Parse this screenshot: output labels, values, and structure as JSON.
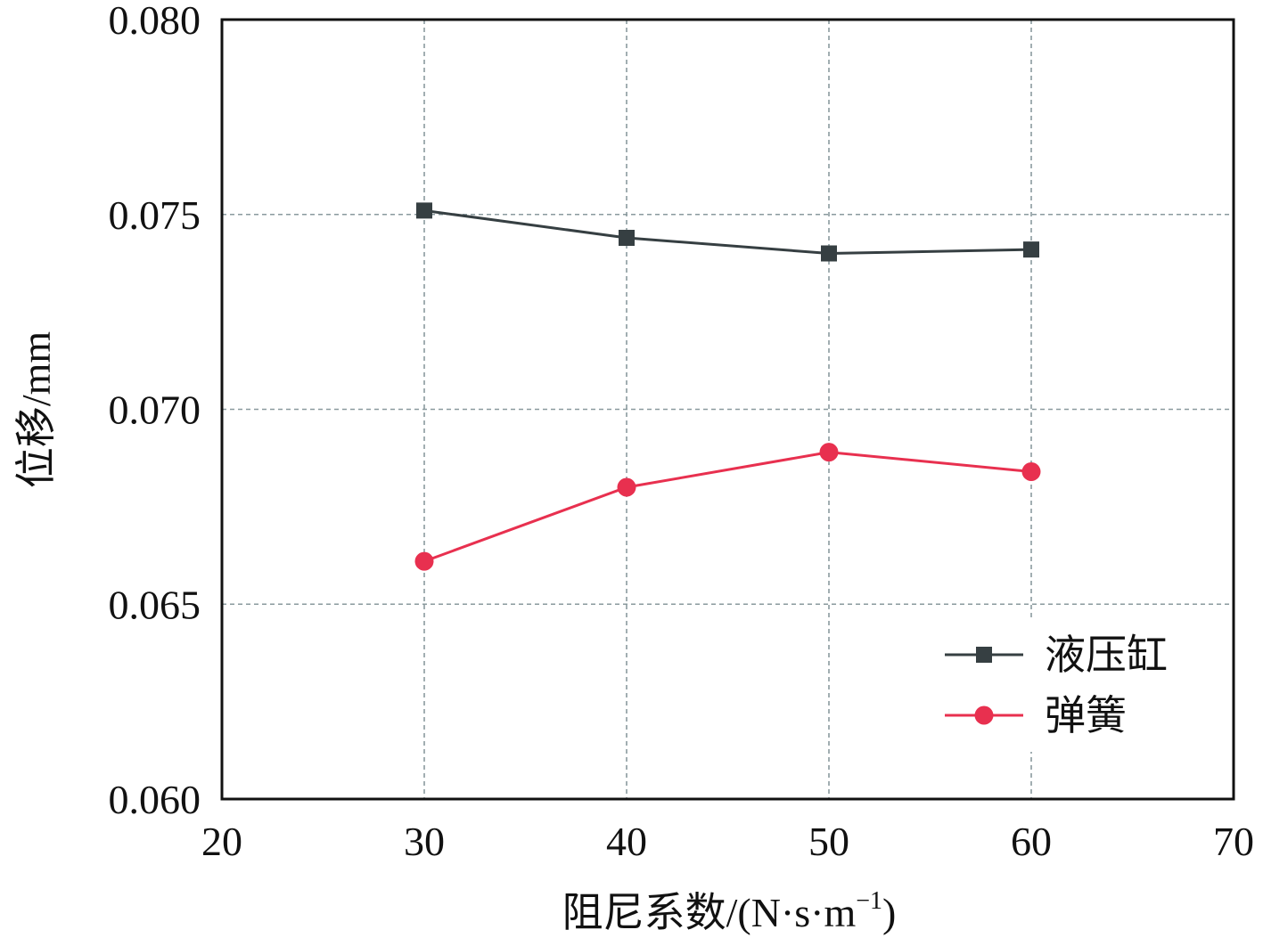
{
  "chart_data": {
    "type": "line",
    "title": "",
    "xlabel": "阻尼系数/(N·s·m",
    "xlabel_sup": "−1",
    "xlabel_close": ")",
    "ylabel": "位移/mm",
    "xlim": [
      20,
      70
    ],
    "ylim": [
      0.06,
      0.08
    ],
    "xticks": [
      20,
      30,
      40,
      50,
      60,
      70
    ],
    "xtick_labels": [
      "20",
      "30",
      "40",
      "50",
      "60",
      "70"
    ],
    "yticks": [
      0.06,
      0.065,
      0.07,
      0.075,
      0.08
    ],
    "ytick_labels": [
      "0.060",
      "0.065",
      "0.070",
      "0.075",
      "0.080"
    ],
    "grid": true,
    "legend_position": "bottom-right",
    "x": [
      30,
      40,
      50,
      60
    ],
    "series": [
      {
        "name": "液压缸",
        "values": [
          0.0751,
          0.0744,
          0.074,
          0.0741
        ],
        "color": "#363f42",
        "marker": "square"
      },
      {
        "name": "弹簧",
        "values": [
          0.0661,
          0.068,
          0.0689,
          0.0684
        ],
        "color": "#e8304f",
        "marker": "circle"
      }
    ]
  }
}
